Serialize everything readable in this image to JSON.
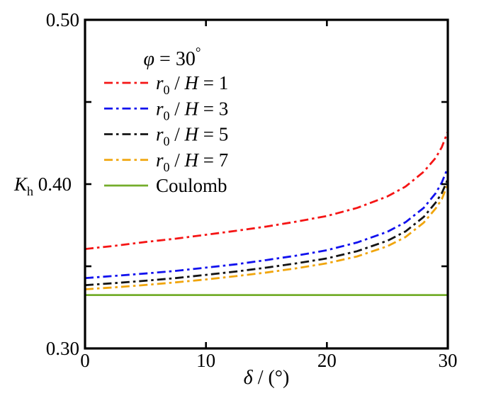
{
  "figure": {
    "background": "#ffffff",
    "axis_color": "#000000",
    "text_color": "#000000"
  },
  "chart_data": {
    "type": "line",
    "title_segments": [
      {
        "text": "φ",
        "style": "italic"
      },
      {
        "text": " = 30",
        "style": "normal"
      },
      {
        "text": "°",
        "style": "super"
      }
    ],
    "xlabel_segments": [
      {
        "text": "δ",
        "style": "italic"
      },
      {
        "text": " / (°)",
        "style": "normal"
      }
    ],
    "ylabel_segments": [
      {
        "text": "K",
        "style": "italic"
      },
      {
        "text": "h",
        "style": "sub"
      },
      {
        "text": " 0.40",
        "style": "normal"
      }
    ],
    "x_axis": {
      "min": 0,
      "max": 30,
      "tick_labels": [
        {
          "value": 0,
          "label": "0"
        },
        {
          "value": 10,
          "label": "10"
        },
        {
          "value": 20,
          "label": "20"
        },
        {
          "value": 30,
          "label": "30"
        }
      ],
      "tick_marks": [
        10,
        20
      ]
    },
    "y_axis": {
      "min": 0.3,
      "max": 0.5,
      "tick_labels": [
        {
          "value": 0.3,
          "label": "0.30"
        },
        {
          "value": 0.5,
          "label": "0.50"
        }
      ],
      "tick_marks": [
        0.35,
        0.4,
        0.45
      ]
    },
    "grid": false,
    "legend_position": "upper-left-inside",
    "x_shared": [
      0,
      2.5,
      5,
      7.5,
      10,
      12.5,
      15,
      17.5,
      20,
      22.5,
      25,
      26.5,
      28,
      29,
      29.5,
      30
    ],
    "series": [
      {
        "id": "r0h1",
        "name": "r0/H = 1",
        "color": "#f51515",
        "line_style": "dashdot",
        "label_segments": [
          {
            "text": "r",
            "style": "italic"
          },
          {
            "text": "0",
            "style": "sub"
          },
          {
            "text": " / ",
            "style": "normal"
          },
          {
            "text": "H",
            "style": "italic"
          },
          {
            "text": " = 1",
            "style": "normal"
          }
        ],
        "x": [
          0,
          2.5,
          5,
          7.5,
          10,
          12.5,
          15,
          17.5,
          20,
          22.5,
          25,
          26.5,
          28,
          29,
          29.5,
          30
        ],
        "y": [
          0.3605,
          0.3625,
          0.3648,
          0.3668,
          0.3692,
          0.3716,
          0.3742,
          0.3772,
          0.3806,
          0.3855,
          0.3925,
          0.3985,
          0.4075,
          0.416,
          0.4225,
          0.432
        ]
      },
      {
        "id": "r0h3",
        "name": "r0/H = 3",
        "color": "#1212ee",
        "line_style": "dashdot",
        "label_segments": [
          {
            "text": "r",
            "style": "italic"
          },
          {
            "text": "0",
            "style": "sub"
          },
          {
            "text": " / ",
            "style": "normal"
          },
          {
            "text": "H",
            "style": "italic"
          },
          {
            "text": " = 3",
            "style": "normal"
          }
        ],
        "x": [
          0,
          2.5,
          5,
          7.5,
          10,
          12.5,
          15,
          17.5,
          20,
          22.5,
          25,
          26.5,
          28,
          29,
          29.5,
          30
        ],
        "y": [
          0.3428,
          0.3442,
          0.3456,
          0.3472,
          0.3492,
          0.3512,
          0.3538,
          0.3565,
          0.3598,
          0.3645,
          0.371,
          0.3768,
          0.3855,
          0.3945,
          0.401,
          0.41
        ]
      },
      {
        "id": "r0h5",
        "name": "r0/H = 5",
        "color": "#141414",
        "line_style": "dashdot",
        "label_segments": [
          {
            "text": "r",
            "style": "italic"
          },
          {
            "text": "0",
            "style": "sub"
          },
          {
            "text": " / ",
            "style": "normal"
          },
          {
            "text": "H",
            "style": "italic"
          },
          {
            "text": " = 5",
            "style": "normal"
          }
        ],
        "x": [
          0,
          2.5,
          5,
          7.5,
          10,
          12.5,
          15,
          17.5,
          20,
          22.5,
          25,
          26.5,
          28,
          29,
          29.5,
          30
        ],
        "y": [
          0.3385,
          0.3398,
          0.3412,
          0.3428,
          0.3448,
          0.3468,
          0.3492,
          0.3518,
          0.3548,
          0.3592,
          0.3655,
          0.3712,
          0.38,
          0.3888,
          0.3945,
          0.403
        ]
      },
      {
        "id": "r0h7",
        "name": "r0/H = 7",
        "color": "#f0a50c",
        "line_style": "dashdot",
        "label_segments": [
          {
            "text": "r",
            "style": "italic"
          },
          {
            "text": "0",
            "style": "sub"
          },
          {
            "text": " / ",
            "style": "normal"
          },
          {
            "text": "H",
            "style": "italic"
          },
          {
            "text": " = 7",
            "style": "normal"
          }
        ],
        "x": [
          0,
          2.5,
          5,
          7.5,
          10,
          12.5,
          15,
          17.5,
          20,
          22.5,
          25,
          26.5,
          28,
          29,
          29.5,
          30
        ],
        "y": [
          0.336,
          0.3372,
          0.3386,
          0.3402,
          0.342,
          0.344,
          0.3462,
          0.3488,
          0.3518,
          0.356,
          0.3622,
          0.3678,
          0.3765,
          0.3852,
          0.3908,
          0.4
        ]
      },
      {
        "id": "coulomb",
        "name": "Coulomb",
        "color": "#74ad2b",
        "line_style": "solid",
        "label_segments": [
          {
            "text": "Coulomb",
            "style": "normal"
          }
        ],
        "x": [
          0,
          30
        ],
        "y": [
          0.3325,
          0.3325
        ]
      }
    ]
  }
}
